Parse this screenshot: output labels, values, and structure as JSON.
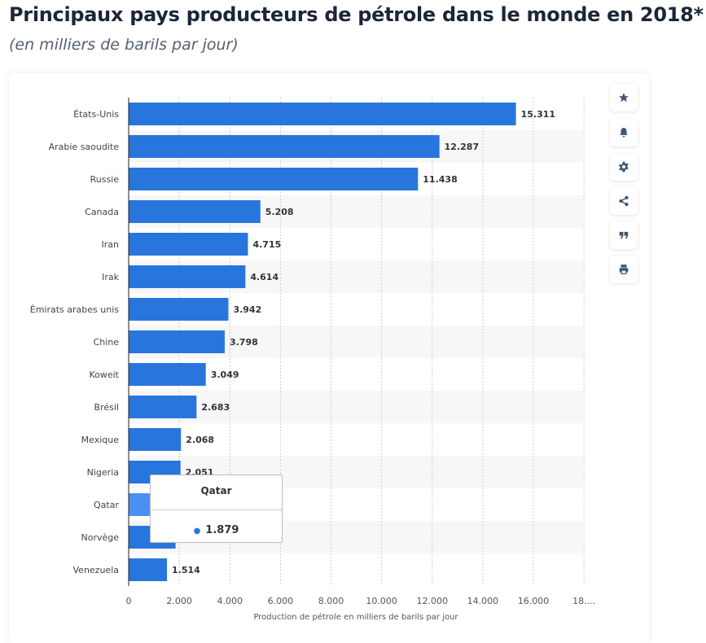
{
  "title": "Principaux pays producteurs de pétrole dans le monde en 2018*",
  "subtitle": "(en milliers de barils par jour)",
  "toolbar": [
    "star-icon",
    "bell-icon",
    "gear-icon",
    "share-icon",
    "quote-icon",
    "print-icon"
  ],
  "tooltip": {
    "title": "Qatar",
    "value": "1.879"
  },
  "colors": {
    "bar": "#2876dd",
    "bar_hover": "#4a90f0",
    "stripe": "#f7f7f7"
  },
  "chart_data": {
    "type": "bar",
    "orientation": "horizontal",
    "categories": [
      "États-Unis",
      "Arabie saoudite",
      "Russie",
      "Canada",
      "Iran",
      "Irak",
      "Émirats arabes unis",
      "Chine",
      "Koweit",
      "Brésil",
      "Mexique",
      "Nigeria",
      "Qatar",
      "Norvège",
      "Venezuela"
    ],
    "values": [
      15311,
      12287,
      11438,
      5208,
      4715,
      4614,
      3942,
      3798,
      3049,
      2683,
      2068,
      2051,
      1879,
      1853,
      1514
    ],
    "data_labels": [
      "15.311",
      "12.287",
      "11.438",
      "5.208",
      "4.715",
      "4.614",
      "3.942",
      "3.798",
      "3.049",
      "2.683",
      "2.068",
      "2.051",
      "",
      "",
      "1.514"
    ],
    "xlabel": "Production de pétrole en milliers de barils par jour",
    "xlim": [
      0,
      18000
    ],
    "ticks": [
      0,
      2000,
      4000,
      6000,
      8000,
      10000,
      12000,
      14000,
      16000,
      18000
    ],
    "tick_labels": [
      "0",
      "2.000",
      "4.000",
      "6.000",
      "8.000",
      "10.000",
      "12.000",
      "14.000",
      "16.000",
      "18...."
    ],
    "grid": true,
    "highlighted": "Qatar"
  }
}
